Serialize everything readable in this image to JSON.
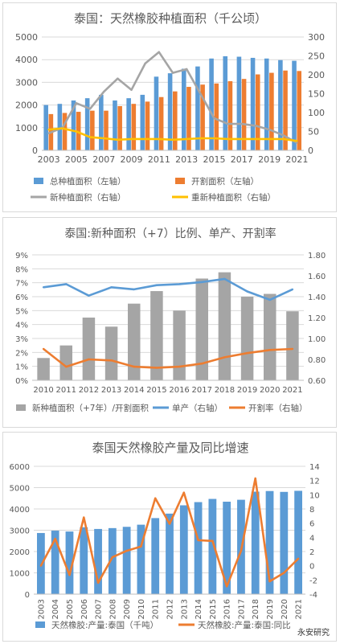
{
  "colors": {
    "blue": "#5b9bd5",
    "orange": "#ed7d31",
    "gray": "#a5a5a5",
    "yellow": "#ffc000",
    "axis": "#595959",
    "grid": "#d9d9d9"
  },
  "watermark": "永安研究",
  "chart_data": [
    {
      "type": "bar",
      "title": "泰国：天然橡胶种植面积（千公顷）",
      "x": [
        "2003",
        "2004",
        "2005",
        "2006",
        "2007",
        "2008",
        "2009",
        "2010",
        "2011",
        "2012",
        "2013",
        "2014",
        "2015",
        "2016",
        "2017",
        "2018",
        "2019",
        "2020",
        "2021"
      ],
      "x_tick_labels": [
        "2003",
        "2005",
        "2007",
        "2009",
        "2011",
        "2013",
        "2015",
        "2017",
        "2019",
        "2021"
      ],
      "y_left": {
        "ylim": [
          0,
          5000
        ],
        "ticks": [
          "0",
          "1000",
          "2000",
          "3000",
          "4000",
          "5000"
        ]
      },
      "y_right": {
        "ylim": [
          0,
          300
        ],
        "ticks": [
          "0",
          "50",
          "100",
          "150",
          "200",
          "250",
          "300"
        ]
      },
      "series": [
        {
          "name": "总种植面积（左轴）",
          "type": "bar",
          "axis": "left",
          "color": "#5b9bd5",
          "values": [
            2000,
            2050,
            2200,
            2300,
            2450,
            2200,
            2300,
            2450,
            3250,
            3400,
            3600,
            3700,
            4050,
            4150,
            4130,
            4080,
            4050,
            3980,
            3950
          ]
        },
        {
          "name": "开割面积（左轴）",
          "type": "bar",
          "axis": "left",
          "color": "#ed7d31",
          "values": [
            1600,
            1650,
            1700,
            1750,
            1750,
            1950,
            2050,
            2150,
            2350,
            2600,
            2800,
            2900,
            2950,
            3050,
            3150,
            3350,
            3420,
            3520,
            3500
          ]
        },
        {
          "name": "新种植面积（右轴）",
          "type": "line",
          "axis": "right",
          "color": "#a5a5a5",
          "values": [
            45,
            60,
            125,
            110,
            155,
            190,
            160,
            230,
            260,
            205,
            215,
            150,
            85,
            70,
            70,
            65,
            55,
            40,
            20
          ]
        },
        {
          "name": "重新种植面积（右轴）",
          "type": "line",
          "axis": "right",
          "color": "#ffc000",
          "values": [
            55,
            58,
            50,
            35,
            32,
            28,
            30,
            30,
            30,
            28,
            30,
            32,
            32,
            30,
            30,
            30,
            30,
            30,
            25
          ]
        }
      ]
    },
    {
      "type": "bar",
      "title": "泰国:新种面积（+7）比例、单产、开割率",
      "x": [
        "2010",
        "2011",
        "2012",
        "2013",
        "2014",
        "2015",
        "2016",
        "2017",
        "2018",
        "2019",
        "2020",
        "2021"
      ],
      "y_left": {
        "ylim": [
          0,
          9
        ],
        "ticks": [
          "0%",
          "1%",
          "2%",
          "3%",
          "4%",
          "5%",
          "6%",
          "7%",
          "8%",
          "9%"
        ]
      },
      "y_right": {
        "ylim": [
          0.6,
          1.8
        ],
        "ticks": [
          "0.60",
          "0.80",
          "1.00",
          "1.20",
          "1.40",
          "1.60",
          "1.80"
        ]
      },
      "series": [
        {
          "name": "新种植面积（+7年）/开割面积",
          "type": "bar",
          "axis": "left",
          "color": "#a5a5a5",
          "values": [
            1.6,
            2.5,
            4.5,
            3.85,
            5.5,
            6.4,
            5.0,
            7.3,
            7.75,
            6.0,
            6.2,
            4.95
          ]
        },
        {
          "name": "单产（右轴）",
          "type": "line",
          "axis": "right",
          "color": "#5b9bd5",
          "values": [
            1.49,
            1.52,
            1.41,
            1.49,
            1.47,
            1.51,
            1.52,
            1.54,
            1.57,
            1.45,
            1.37,
            1.47
          ]
        },
        {
          "name": "开割率（右轴）",
          "type": "line",
          "axis": "right",
          "color": "#ed7d31",
          "values": [
            0.9,
            0.73,
            0.8,
            0.79,
            0.73,
            0.72,
            0.73,
            0.76,
            0.82,
            0.86,
            0.89,
            0.9
          ]
        }
      ]
    },
    {
      "type": "bar",
      "title": "泰国天然橡胶产量及同比增速",
      "x": [
        "2003",
        "2004",
        "2005",
        "2006",
        "2007",
        "2008",
        "2009",
        "2010",
        "2011",
        "2012",
        "2013",
        "2014",
        "2015",
        "2016",
        "2017",
        "2018",
        "2019",
        "2020",
        "2021"
      ],
      "y_left": {
        "ylim": [
          0,
          6000
        ],
        "ticks": [
          "0",
          "1000",
          "2000",
          "3000",
          "4000",
          "5000",
          "6000"
        ]
      },
      "y_right": {
        "ylim": [
          -4,
          14
        ],
        "ticks": [
          "-4",
          "-2",
          "0",
          "2",
          "4",
          "6",
          "8",
          "10",
          "12",
          "14"
        ]
      },
      "series": [
        {
          "name": "天然橡胶:产量:泰国（千吨）",
          "type": "bar",
          "axis": "left",
          "color": "#5b9bd5",
          "values": [
            2870,
            2980,
            2940,
            3140,
            3060,
            3100,
            3160,
            3260,
            3570,
            3780,
            4170,
            4320,
            4470,
            4340,
            4430,
            4810,
            4840,
            4800,
            4850
          ]
        },
        {
          "name": "天然橡胶:产量:泰国:同比",
          "type": "line",
          "axis": "right",
          "color": "#ed7d31",
          "values": [
            0.0,
            3.8,
            -1.3,
            6.8,
            -2.4,
            1.2,
            2.1,
            2.7,
            9.5,
            5.9,
            10.3,
            3.6,
            3.5,
            -2.9,
            2.1,
            12.3,
            -2.2,
            -1.0,
            1.0
          ]
        }
      ]
    }
  ]
}
